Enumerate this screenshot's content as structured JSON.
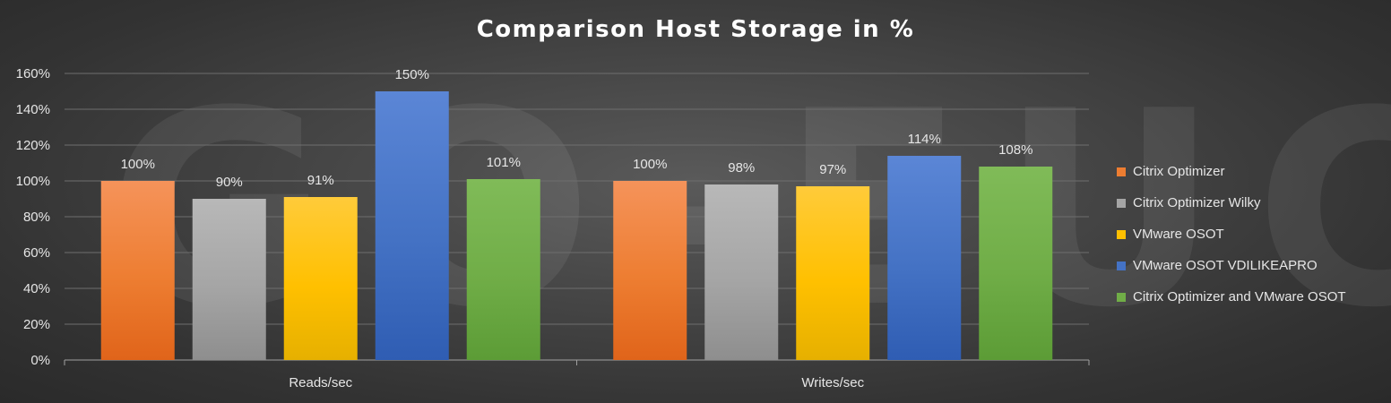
{
  "chart_data": {
    "type": "bar",
    "title": "Comparison Host Storage in %",
    "categories": [
      "Reads/sec",
      "Writes/sec"
    ],
    "series": [
      {
        "name": "Citrix Optimizer",
        "values": [
          100,
          100
        ],
        "labels": [
          "100%",
          "100%"
        ],
        "color": "#ed7d31",
        "color_light": "#f5935a",
        "color_dark": "#e0641a"
      },
      {
        "name": "Citrix Optimizer Wilky",
        "values": [
          90,
          98
        ],
        "labels": [
          "90%",
          "98%"
        ],
        "color": "#a5a5a5",
        "color_light": "#b8b8b8",
        "color_dark": "#8e8e8e"
      },
      {
        "name": "VMware OSOT",
        "values": [
          91,
          97
        ],
        "labels": [
          "91%",
          "97%"
        ],
        "color": "#ffc000",
        "color_light": "#ffcb3a",
        "color_dark": "#e6b000"
      },
      {
        "name": "VMware OSOT VDILIKEAPRO",
        "values": [
          150,
          114
        ],
        "labels": [
          "150%",
          "114%"
        ],
        "color": "#4472c4",
        "color_light": "#5b86d6",
        "color_dark": "#2f5db3"
      },
      {
        "name": "Citrix Optimizer and VMware OSOT",
        "values": [
          101,
          108
        ],
        "labels": [
          "101%",
          "108%"
        ],
        "color": "#70ad47",
        "color_light": "#80bb58",
        "color_dark": "#5c9c36"
      }
    ],
    "ylim": [
      0,
      160
    ],
    "yticks": [
      0,
      20,
      40,
      60,
      80,
      100,
      120,
      140,
      160
    ],
    "ytick_labels": [
      "0%",
      "20%",
      "40%",
      "60%",
      "80%",
      "100%",
      "120%",
      "140%",
      "160%"
    ],
    "xlabel": "",
    "ylabel": "",
    "grid": true,
    "legend_position": "right",
    "watermark": "GO-EUC"
  }
}
